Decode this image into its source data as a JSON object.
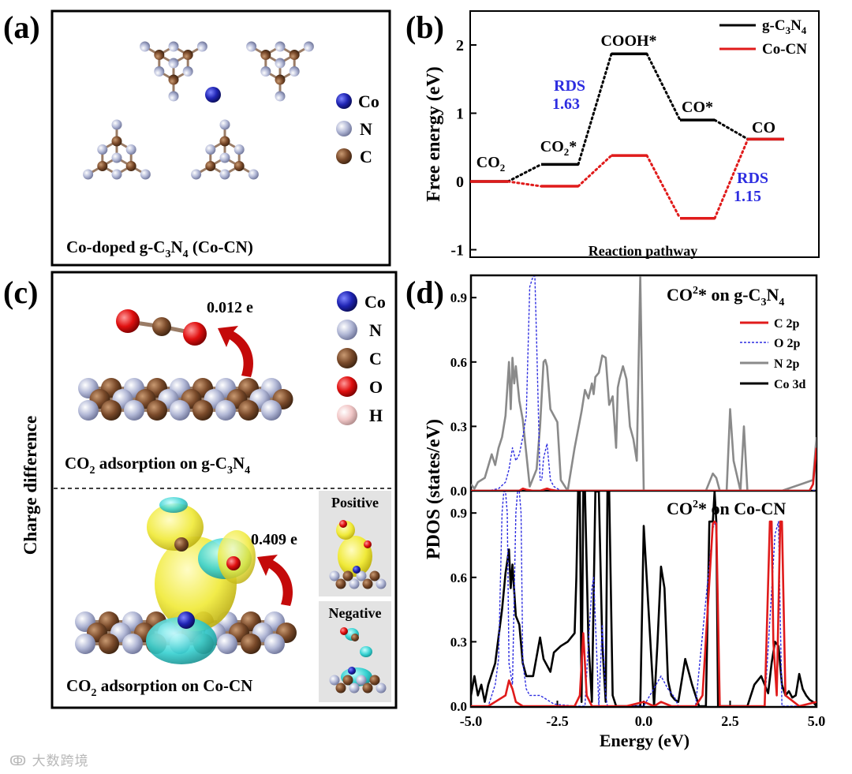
{
  "panels": {
    "a": {
      "label": "(a)",
      "legend": [
        "Co",
        "N",
        "C"
      ],
      "caption": "Co-doped g-C3N4 (Co-CN)"
    },
    "c": {
      "label": "(c)",
      "side_label": "Charge difference",
      "legend": [
        "Co",
        "N",
        "C",
        "O",
        "H"
      ],
      "top_charge": "0.012 e",
      "bottom_charge": "0.409 e",
      "top_caption": "CO2 adsorption on g-C3N4",
      "bottom_caption": "CO2 adsorption on Co-CN",
      "inset_positive": "Positive",
      "inset_negative": "Negative"
    }
  },
  "colors": {
    "co": "#1f24b4",
    "n": "#b2b8d6",
    "c": "#7a4a2a",
    "o": "#e01010",
    "h": "#f2c8c8",
    "black": "#000000",
    "red": "#e01b1b",
    "blue": "#2d2de0",
    "gray": "#8a8a8a",
    "yellow": "#f0ea3a",
    "cyan": "#35d0d0"
  },
  "watermark": "大数跨境",
  "chart_data": [
    {
      "panel": "(b)",
      "type": "line",
      "title": "",
      "xlabel": "Reaction pathway",
      "ylabel": "Free energy (eV)",
      "ylim": [
        -1.15,
        2.55
      ],
      "yticks": [
        -1,
        0,
        1,
        2
      ],
      "steps": [
        "CO2",
        "CO2*",
        "COOH*",
        "CO*",
        "CO"
      ],
      "series": [
        {
          "name": "g-C3N4",
          "color": "black",
          "values": [
            0,
            0.25,
            1.87,
            0.9,
            0.62
          ]
        },
        {
          "name": "Co-CN",
          "color": "red",
          "values": [
            0,
            -0.07,
            0.38,
            -0.54,
            0.62
          ]
        }
      ],
      "annotations": [
        {
          "text": "RDS",
          "value": "1.63"
        },
        {
          "text": "RDS",
          "value": "1.15"
        }
      ]
    },
    {
      "panel": "(d)",
      "type": "line",
      "xlabel": "Energy (eV)",
      "ylabel": "PDOS (states/eV)",
      "xlim": [
        -5,
        5
      ],
      "xticks": [
        -5.0,
        -2.5,
        0.0,
        2.5,
        5.0
      ],
      "ylim": [
        0,
        1.0
      ],
      "yticks": [
        0.0,
        0.3,
        0.6,
        0.9
      ],
      "legend": [
        "C 2p",
        "O 2p",
        "N 2p",
        "Co 3d"
      ],
      "subplots": [
        {
          "title": "CO2* on g-C3N4",
          "series": [
            {
              "name": "N 2p",
              "color": "gray",
              "x": [
                -5,
                -4.9,
                -4.8,
                -4.6,
                -4.4,
                -4.3,
                -4.2,
                -4.1,
                -4.0,
                -3.9,
                -3.85,
                -3.8,
                -3.75,
                -3.7,
                -3.6,
                -3.5,
                -3.3,
                -3.1,
                -3.0,
                -2.9,
                -2.85,
                -2.8,
                -2.7,
                -2.5,
                -2.4,
                -2.2,
                -2.0,
                -1.8,
                -1.7,
                -1.6,
                -1.5,
                -1.45,
                -1.4,
                -1.3,
                -1.2,
                -1.1,
                -1.0,
                -0.9,
                -0.8,
                -0.75,
                -0.7,
                -0.6,
                -0.5,
                -0.4,
                -0.3,
                -0.2,
                -0.1,
                0.0,
                0.5,
                1.0,
                1.5,
                1.8,
                2.0,
                2.1,
                2.2,
                2.3,
                2.4,
                2.5,
                2.6,
                2.8,
                2.9,
                3.0,
                3.1,
                3.3,
                3.4,
                3.5,
                4.0,
                4.9,
                5.0
              ],
              "y": [
                0.03,
                0.01,
                0.04,
                0.06,
                0.17,
                0.12,
                0.2,
                0.25,
                0.35,
                0.6,
                0.38,
                0.62,
                0.5,
                0.58,
                0.42,
                0.33,
                0.02,
                0.1,
                0.3,
                0.6,
                0.61,
                0.58,
                0.38,
                0.32,
                0.05,
                0.0,
                0.2,
                0.37,
                0.47,
                0.43,
                0.5,
                0.45,
                0.53,
                0.55,
                0.63,
                0.62,
                0.4,
                0.44,
                0.2,
                0.48,
                0.52,
                0.58,
                0.52,
                0.3,
                0.24,
                0.14,
                1.0,
                0.0,
                0.0,
                0.0,
                0.0,
                0.0,
                0.08,
                0.06,
                0.0,
                0.0,
                0.0,
                0.38,
                0.14,
                0.0,
                0.3,
                0.0,
                0.0,
                0.0,
                0.0,
                0.0,
                0.0,
                0.05,
                0.25
              ]
            },
            {
              "name": "O 2p",
              "color": "blue",
              "x": [
                -5,
                -4.5,
                -4.2,
                -4.0,
                -3.9,
                -3.8,
                -3.7,
                -3.6,
                -3.5,
                -3.4,
                -3.3,
                -3.2,
                -3.15,
                -3.1,
                -3.0,
                -2.95,
                -2.9,
                -2.8,
                -2.7,
                -2.6,
                -2.5,
                -2.4,
                5.0
              ],
              "y": [
                0.0,
                0.0,
                0.01,
                0.04,
                0.1,
                0.2,
                0.14,
                0.17,
                0.25,
                0.35,
                0.95,
                1.0,
                1.0,
                0.7,
                0.05,
                0.05,
                0.15,
                0.22,
                0.05,
                0.02,
                0.01,
                0.0,
                0.0
              ]
            },
            {
              "name": "C 2p",
              "color": "red",
              "x": [
                -5,
                -3.6,
                -3.5,
                -3.4,
                -3.2,
                -3.0,
                -2.9,
                -2.8,
                -2.7,
                -2.5,
                -1.0,
                4.8,
                4.9,
                5.0
              ],
              "y": [
                0.0,
                0.0,
                0.01,
                0.005,
                0.0,
                0.0,
                0.005,
                0.01,
                0.005,
                0.0,
                0.0,
                0.0,
                0.03,
                0.2
              ]
            }
          ]
        },
        {
          "title": "CO2* on Co-CN",
          "series": [
            {
              "name": "Co 3d",
              "color": "black",
              "x": [
                -5,
                -4.9,
                -4.8,
                -4.7,
                -4.6,
                -4.5,
                -4.3,
                -4.1,
                -4.0,
                -3.9,
                -3.85,
                -3.8,
                -3.7,
                -3.6,
                -3.5,
                -3.4,
                -3.2,
                -3.0,
                -2.9,
                -2.7,
                -2.6,
                -2.4,
                -2.2,
                -2.0,
                -1.95,
                -1.9,
                -1.85,
                -1.8,
                -1.75,
                -1.7,
                -1.6,
                -1.5,
                -1.4,
                -1.3,
                -1.2,
                -1.1,
                -1.05,
                -1.0,
                -0.9,
                -0.8,
                -0.75,
                -0.7,
                -0.6,
                -0.5,
                -0.4,
                -0.35,
                -0.3,
                -0.25,
                -0.2,
                -0.1,
                0.0,
                0.3,
                0.4,
                0.5,
                0.6,
                0.7,
                0.8,
                0.9,
                1.0,
                1.2,
                1.4,
                1.6,
                1.8,
                1.9,
                2.0,
                2.05,
                2.1,
                2.15,
                2.2,
                2.3,
                2.5,
                3.0,
                3.2,
                3.4,
                3.6,
                3.7,
                3.8,
                3.9,
                4.0,
                4.1,
                4.2,
                4.3,
                4.4,
                4.5,
                4.6,
                4.7,
                4.8,
                4.9,
                5.0
              ],
              "y": [
                0.05,
                0.14,
                0.05,
                0.1,
                0.02,
                0.1,
                0.2,
                0.45,
                0.62,
                0.73,
                0.55,
                0.66,
                0.42,
                0.38,
                0.2,
                0.14,
                0.14,
                0.32,
                0.22,
                0.16,
                0.25,
                0.28,
                0.3,
                0.34,
                0.6,
                1.0,
                1.0,
                0.02,
                1.0,
                1.0,
                0.3,
                0.02,
                1.0,
                1.0,
                0.3,
                0.02,
                1.0,
                1.0,
                0.05,
                0.0,
                0.0,
                0.0,
                0.0,
                0.0,
                0.0,
                0.0,
                0.0,
                0.0,
                0.0,
                0.0,
                0.84,
                0.0,
                0.3,
                0.65,
                0.55,
                0.12,
                0.05,
                0.03,
                0.02,
                0.22,
                0.1,
                0.0,
                0.0,
                0.86,
                0.86,
                1.0,
                0.86,
                0.0,
                0.0,
                0.0,
                0.0,
                0.0,
                0.1,
                0.14,
                0.06,
                0.2,
                0.3,
                0.28,
                0.1,
                0.05,
                0.07,
                0.04,
                0.05,
                0.15,
                0.08,
                0.05,
                0.03,
                0.02,
                0.0
              ]
            },
            {
              "name": "O 2p",
              "color": "blue",
              "x": [
                -5,
                -4.5,
                -4.3,
                -4.2,
                -4.1,
                -4.05,
                -4.0,
                -3.95,
                -3.9,
                -3.8,
                -3.7,
                -3.65,
                -3.6,
                -3.55,
                -3.5,
                -3.4,
                -3.3,
                -3.0,
                -2.8,
                -2.6,
                -2.0,
                -1.7,
                -1.6,
                -1.5,
                -1.45,
                -1.4,
                -1.3,
                -1.2,
                -1.1,
                -1.05,
                -1.0,
                -0.5,
                0.0,
                0.5,
                0.7,
                0.9,
                1.0,
                1.5,
                2.0,
                2.1,
                2.2,
                2.5,
                3.5,
                3.8,
                3.9,
                4.0,
                4.5,
                5.0
              ],
              "y": [
                0.0,
                0.0,
                0.1,
                0.22,
                0.9,
                1.0,
                1.0,
                0.9,
                0.2,
                0.1,
                0.9,
                1.0,
                1.0,
                0.9,
                0.2,
                0.08,
                0.05,
                0.05,
                0.03,
                0.01,
                0.0,
                0.0,
                0.3,
                0.55,
                0.6,
                0.4,
                0.0,
                0.38,
                0.05,
                0.0,
                0.0,
                0.0,
                0.0,
                0.14,
                0.08,
                0.04,
                0.0,
                0.0,
                0.83,
                0.86,
                0.0,
                0.0,
                0.0,
                0.8,
                0.86,
                0.0,
                0.0,
                0.02
              ]
            },
            {
              "name": "C 2p",
              "color": "red",
              "x": [
                -5,
                -4.5,
                -4.0,
                -3.9,
                -3.8,
                -3.7,
                -3.5,
                -2.0,
                -1.85,
                -1.75,
                -1.65,
                -1.5,
                -0.5,
                0.0,
                0.3,
                0.5,
                0.8,
                1.5,
                1.7,
                2.0,
                2.05,
                2.1,
                2.2,
                2.5,
                3.5,
                3.65,
                3.7,
                3.75,
                3.85,
                3.95,
                4.0,
                4.1,
                4.5,
                5.0
              ],
              "y": [
                0.0,
                0.0,
                0.05,
                0.12,
                0.08,
                0.02,
                0.0,
                0.0,
                0.05,
                0.34,
                0.05,
                0.0,
                0.0,
                0.02,
                0.0,
                0.02,
                0.0,
                0.0,
                0.05,
                0.85,
                0.86,
                0.85,
                0.0,
                0.0,
                0.0,
                0.86,
                0.86,
                0.3,
                0.05,
                0.86,
                0.86,
                0.05,
                0.0,
                0.02
              ]
            }
          ]
        }
      ]
    }
  ]
}
